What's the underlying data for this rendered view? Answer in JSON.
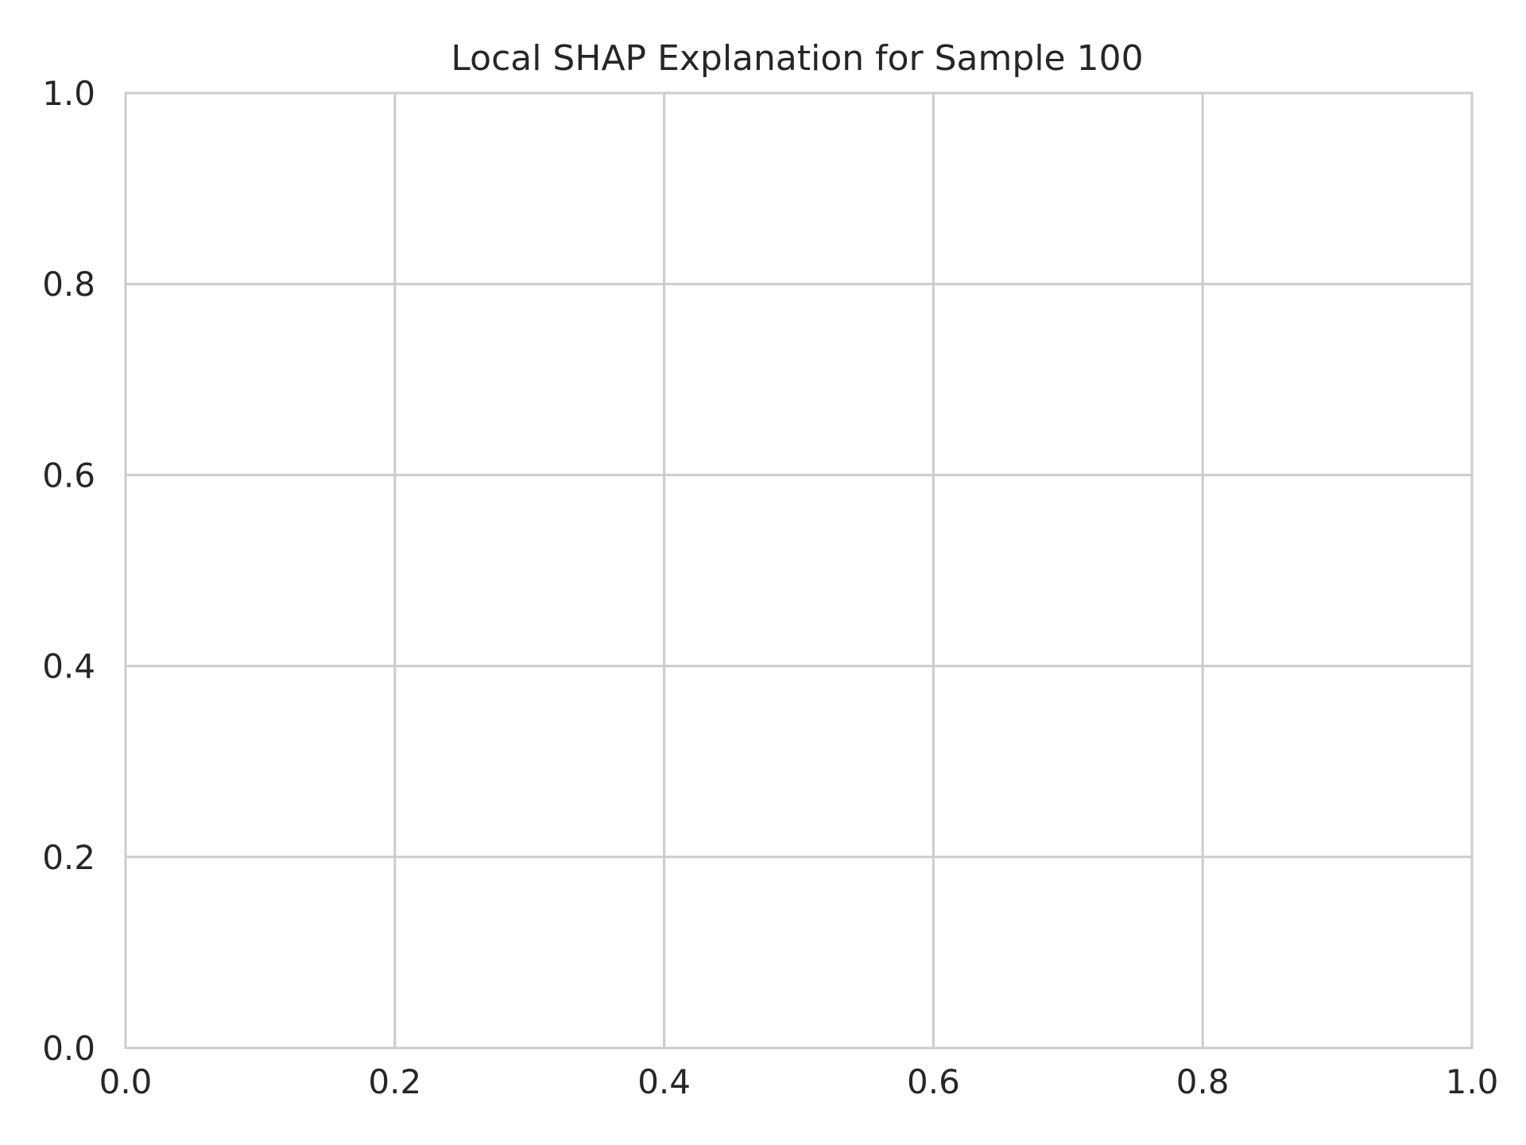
{
  "chart_data": {
    "type": "bar",
    "title": "Local SHAP Explanation for Sample 100",
    "xlabel": "",
    "ylabel": "",
    "xlim": [
      0.0,
      1.0
    ],
    "ylim": [
      0.0,
      1.0
    ],
    "xticks": [
      "0.0",
      "0.2",
      "0.4",
      "0.6",
      "0.8",
      "1.0"
    ],
    "yticks": [
      "0.0",
      "0.2",
      "0.4",
      "0.6",
      "0.8",
      "1.0"
    ],
    "categories": [],
    "values": [],
    "grid": true,
    "colors": {
      "grid": "#cccccc",
      "text": "#262626",
      "background": "#ffffff"
    }
  }
}
